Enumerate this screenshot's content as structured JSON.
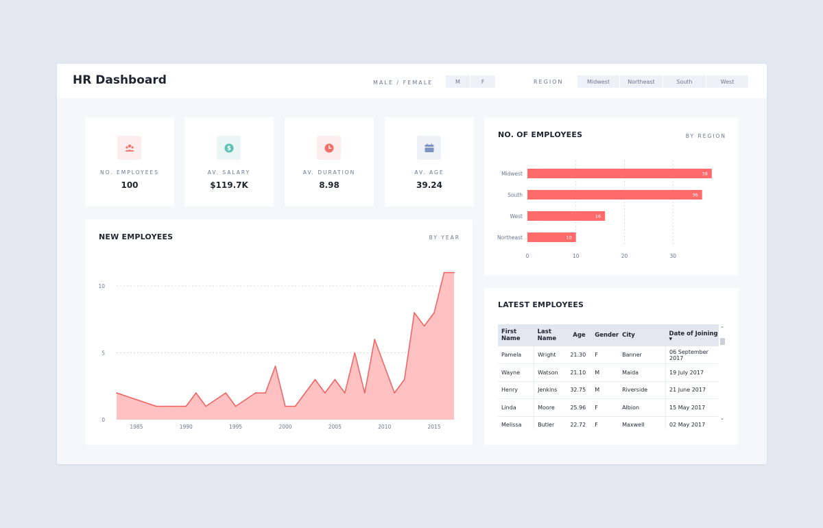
{
  "header": {
    "title": "HR Dashboard",
    "gender_label": "MALE / FEMALE",
    "gender_options": [
      "M",
      "F"
    ],
    "region_label": "REGION",
    "region_options": [
      "Midwest",
      "Northeast",
      "South",
      "West"
    ]
  },
  "kpis": [
    {
      "label": "NO. EMPLOYEES",
      "value": "100",
      "icon": "people-icon",
      "color": "#f27069"
    },
    {
      "label": "AV. SALARY",
      "value": "$119.7K",
      "icon": "dollar-icon",
      "color": "#5fbfb3"
    },
    {
      "label": "AV. DURATION",
      "value": "8.98",
      "icon": "clock-icon",
      "color": "#f27069"
    },
    {
      "label": "AV. AGE",
      "value": "39.24",
      "icon": "calendar-icon",
      "color": "#7b94c4"
    }
  ],
  "new_employees": {
    "title": "NEW EMPLOYEES",
    "subtitle": "BY YEAR"
  },
  "employees_by_region": {
    "title": "NO. OF EMPLOYEES",
    "subtitle": "BY REGION"
  },
  "latest_employees": {
    "title": "LATEST EMPLOYEES",
    "columns": [
      "First Name",
      "Last Name",
      "Age",
      "Gender",
      "City",
      "Date of Joining"
    ],
    "rows": [
      [
        "Pamela",
        "Wright",
        "21.30",
        "F",
        "Banner",
        "06 September 2017"
      ],
      [
        "Wayne",
        "Watson",
        "21.10",
        "M",
        "Maida",
        "19 July 2017"
      ],
      [
        "Henry",
        "Jenkins",
        "32.75",
        "M",
        "Riverside",
        "21 June 2017"
      ],
      [
        "Linda",
        "Moore",
        "25.96",
        "F",
        "Albion",
        "15 May 2017"
      ],
      [
        "Melissa",
        "Butler",
        "22.72",
        "F",
        "Maxwell",
        "02 May 2017"
      ]
    ]
  },
  "colors": {
    "accent": "#f27069",
    "bar": "#ff6b6b",
    "area_fill": "#ffc1c1",
    "area_line": "#f25f5f",
    "background": "#f6f7fb"
  },
  "chart_data": [
    {
      "type": "area",
      "title": "NEW EMPLOYEES",
      "x": [
        1983,
        1985,
        1987,
        1988,
        1989,
        1990,
        1991,
        1992,
        1994,
        1995,
        1997,
        1998,
        1999,
        2000,
        2001,
        2003,
        2004,
        2005,
        2006,
        2007,
        2008,
        2009,
        2011,
        2012,
        2013,
        2014,
        2015,
        2016,
        2017
      ],
      "y": [
        2,
        1.5,
        1,
        1,
        1,
        1,
        2,
        1,
        2,
        1,
        2,
        2,
        4,
        1,
        1,
        3,
        2,
        3,
        2,
        5,
        2,
        6,
        2,
        3,
        8,
        7,
        8,
        11,
        11
      ],
      "xticks": [
        "1985",
        "1990",
        "1995",
        "2000",
        "2005",
        "2010",
        "2015"
      ],
      "yticks": [
        "0",
        "5",
        "10"
      ],
      "ylim": [
        0,
        12
      ]
    },
    {
      "type": "bar",
      "orientation": "horizontal",
      "title": "NO. OF EMPLOYEES",
      "categories": [
        "Midwest",
        "South",
        "West",
        "Northeast"
      ],
      "values": [
        38,
        36,
        16,
        10
      ],
      "xticks": [
        "0",
        "10",
        "20",
        "30"
      ],
      "xlim": [
        0,
        40
      ]
    }
  ]
}
